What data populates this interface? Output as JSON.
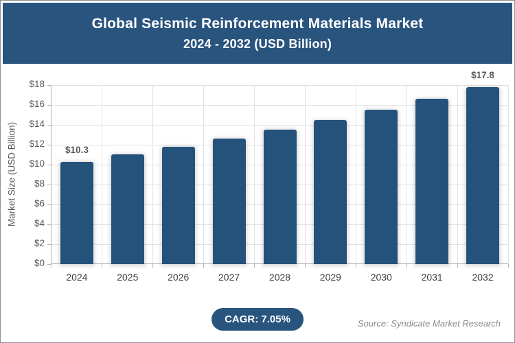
{
  "header": {
    "title_line1": "Global Seismic Reinforcement Materials Market",
    "title_line2": "2024 - 2032 (USD Billion)"
  },
  "chart_data": {
    "type": "bar",
    "title": "Global Seismic Reinforcement Materials Market 2024 - 2032 (USD Billion)",
    "categories": [
      "2024",
      "2025",
      "2026",
      "2027",
      "2028",
      "2029",
      "2030",
      "2031",
      "2032"
    ],
    "values": [
      10.3,
      11.0,
      11.8,
      12.6,
      13.5,
      14.5,
      15.5,
      16.6,
      17.8
    ],
    "data_labels": [
      "$10.3",
      "",
      "",
      "",
      "",
      "",
      "",
      "",
      "$17.8"
    ],
    "xlabel": "",
    "ylabel": "Market Size (USD Billion)",
    "ylim": [
      0,
      18
    ],
    "ytick_step": 2,
    "ytick_prefix": "$",
    "grid": true,
    "legend": "none",
    "bar_color": "#25527B"
  },
  "footer": {
    "cagr_label": "CAGR: 7.05%",
    "source": "Source: Syndicate Market Research"
  },
  "colors": {
    "brand_blue": "#29547E",
    "bar_blue": "#25527B",
    "axis_text": "#595959",
    "gridline": "#e2e2e2",
    "source_text": "#8a8a8a"
  }
}
